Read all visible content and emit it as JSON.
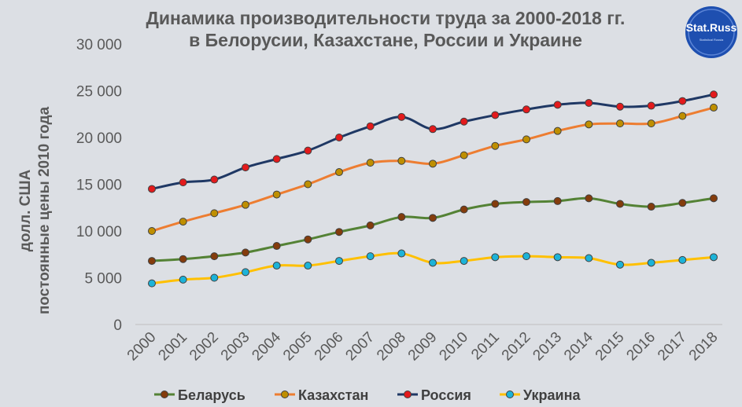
{
  "chart_data": {
    "type": "line",
    "title_line1": "Динамика производительности труда за 2000-2018 гг.",
    "title_line2": "в Белорусии, Казахстане, России и Украине",
    "ylabel_line1": "долл. США",
    "ylabel_line2": "постоянные цены 2010 года",
    "x": [
      "2000",
      "2001",
      "2002",
      "2003",
      "2004",
      "2005",
      "2006",
      "2007",
      "2008",
      "2009",
      "2010",
      "2011",
      "2012",
      "2013",
      "2014",
      "2015",
      "2016",
      "2017",
      "2018"
    ],
    "ylim": [
      0,
      30000
    ],
    "yticks": [
      0,
      5000,
      10000,
      15000,
      20000,
      25000,
      30000
    ],
    "ytick_labels": [
      "0",
      "5 000",
      "10 000",
      "15 000",
      "20 000",
      "25 000",
      "30 000"
    ],
    "grid": false,
    "legend_position": "bottom",
    "series": [
      {
        "name": "Беларусь",
        "color": "#548235",
        "marker": "#843c0c",
        "values": [
          6800,
          7000,
          7300,
          7700,
          8400,
          9100,
          9900,
          10600,
          11500,
          11400,
          12300,
          12900,
          13100,
          13200,
          13500,
          12900,
          12600,
          13000,
          13500
        ]
      },
      {
        "name": "Казахстан",
        "color": "#ed7d31",
        "marker": "#bf8f00",
        "values": [
          10000,
          11000,
          11900,
          12800,
          13900,
          15000,
          16300,
          17300,
          17500,
          17200,
          18100,
          19100,
          19800,
          20700,
          21400,
          21500,
          21500,
          22300,
          23200
        ]
      },
      {
        "name": "Россия",
        "color": "#1f3864",
        "marker": "#e31a1c",
        "values": [
          14500,
          15200,
          15500,
          16800,
          17700,
          18600,
          20000,
          21200,
          22200,
          20900,
          21700,
          22400,
          23000,
          23500,
          23700,
          23300,
          23400,
          23900,
          24600
        ]
      },
      {
        "name": "Украина",
        "color": "#ffc000",
        "marker": "#1cb3d8",
        "values": [
          4400,
          4800,
          5000,
          5600,
          6300,
          6300,
          6800,
          7300,
          7600,
          6600,
          6800,
          7200,
          7300,
          7200,
          7100,
          6400,
          6600,
          6900,
          7200
        ]
      }
    ]
  },
  "logo": {
    "text": "Stat.Russ",
    "sub": "Statistical Russia"
  }
}
